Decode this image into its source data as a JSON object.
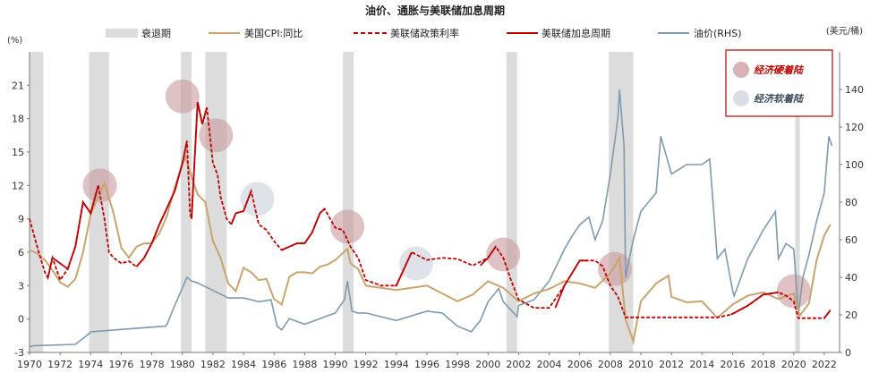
{
  "chart_data": {
    "type": "line",
    "title": "油价、通胀与美联储加息周期",
    "left_unit": "(%)",
    "right_unit": "(美元/桶)",
    "xlim": [
      1970,
      2023
    ],
    "ylim_left": [
      -3,
      24
    ],
    "ylim_right": [
      0,
      160
    ],
    "x_ticks": [
      "1970",
      "1972",
      "1974",
      "1976",
      "1978",
      "1980",
      "1982",
      "1984",
      "1986",
      "1988",
      "1990",
      "1992",
      "1994",
      "1996",
      "1998",
      "2000",
      "2002",
      "2004",
      "2006",
      "2008",
      "2010",
      "2012",
      "2014",
      "2016",
      "2018",
      "2020",
      "2022"
    ],
    "y_left_ticks": [
      "-3",
      "0",
      "3",
      "6",
      "9",
      "12",
      "15",
      "18",
      "21"
    ],
    "y_right_ticks": [
      "0",
      "20",
      "40",
      "60",
      "80",
      "100",
      "120",
      "140"
    ],
    "legend": {
      "recession": "衰退期",
      "cpi": "美国CPI:同比",
      "fed_funds": "美联储政策利率",
      "hike_cycle": "美联储加息周期",
      "oil": "油价(RHS)"
    },
    "annotations_box": {
      "hard_landing": "经济硬着陆",
      "soft_landing": "经济软着陆"
    },
    "colors": {
      "recession": "#dcdcdc",
      "cpi": "#c8a46e",
      "fed_funds": "#c00000",
      "hike_cycle": "#c00000",
      "oil": "#7f99b0",
      "hard_circle": "#c99a9c",
      "soft_circle": "#d9dde4"
    },
    "recessions": [
      [
        1970.0,
        1970.9
      ],
      [
        1973.9,
        1975.2
      ],
      [
        1979.9,
        1980.6
      ],
      [
        1981.5,
        1982.9
      ],
      [
        1990.5,
        1991.2
      ],
      [
        2001.2,
        2001.9
      ],
      [
        2007.9,
        2009.5
      ],
      [
        2020.1,
        2020.4
      ]
    ],
    "cpi": {
      "x": [
        1970,
        1970.5,
        1971,
        1971.5,
        1972,
        1972.5,
        1973,
        1973.5,
        1974,
        1974.5,
        1974.9,
        1975.5,
        1976,
        1976.5,
        1977,
        1977.5,
        1978,
        1978.5,
        1979,
        1979.5,
        1980,
        1980.2,
        1980.6,
        1981,
        1981.5,
        1982,
        1982.5,
        1983,
        1983.5,
        1984,
        1984.5,
        1985,
        1985.5,
        1986,
        1986.5,
        1987,
        1987.5,
        1988,
        1988.5,
        1989,
        1989.5,
        1990,
        1990.8,
        1991,
        1991.5,
        1992,
        1992.5,
        1993,
        1994,
        1995,
        1996,
        1997,
        1998,
        1999,
        2000,
        2001,
        2002,
        2003,
        2004,
        2005,
        2006,
        2007,
        2008,
        2008.6,
        2009,
        2009.5,
        2010,
        2011,
        2011.8,
        2012,
        2013,
        2014,
        2015,
        2016,
        2017,
        2018,
        2019,
        2020,
        2020.4,
        2021,
        2021.5,
        2022,
        2022.4
      ],
      "y": [
        6.2,
        5.9,
        5.3,
        4.4,
        3.3,
        2.9,
        3.6,
        6.0,
        9.4,
        11.0,
        12.2,
        9.5,
        6.4,
        5.5,
        6.5,
        6.8,
        6.8,
        7.7,
        9.3,
        11.8,
        13.9,
        14.6,
        12.8,
        11.2,
        10.5,
        7.0,
        5.5,
        3.2,
        2.5,
        4.6,
        4.2,
        3.5,
        3.6,
        1.8,
        1.3,
        3.8,
        4.2,
        4.2,
        4.1,
        4.7,
        4.9,
        5.3,
        6.3,
        5.0,
        4.5,
        3.0,
        2.9,
        2.8,
        2.6,
        2.8,
        3.0,
        2.3,
        1.6,
        2.2,
        3.4,
        2.8,
        1.6,
        2.3,
        2.7,
        3.4,
        3.2,
        2.8,
        4.1,
        5.5,
        0.0,
        -2.0,
        1.6,
        3.2,
        3.9,
        2.0,
        1.5,
        1.6,
        0.1,
        1.3,
        2.1,
        2.4,
        1.8,
        2.3,
        0.3,
        1.4,
        5.3,
        7.5,
        8.5
      ]
    },
    "fed_funds": {
      "x": [
        1970,
        1970.5,
        1971,
        1971.2,
        1971.5,
        1972,
        1972.5,
        1973,
        1973.5,
        1974,
        1974.5,
        1974.9,
        1975.2,
        1975.5,
        1976,
        1976.5,
        1977,
        1977.5,
        1978,
        1978.5,
        1979,
        1979.5,
        1980,
        1980.3,
        1980.5,
        1980.6,
        1981,
        1981.3,
        1981.6,
        1982,
        1982.3,
        1982.5,
        1982.9,
        1983.2,
        1983.5,
        1984,
        1984.5,
        1985,
        1985.5,
        1986,
        1986.5,
        1987,
        1987.5,
        1988,
        1988.5,
        1989,
        1989.3,
        1990,
        1990.5,
        1991,
        1991.5,
        1992,
        1993,
        1994,
        1994.5,
        1995,
        1996,
        1997,
        1998,
        1999,
        2000,
        2000.5,
        2001,
        2001.5,
        2002,
        2003,
        2004,
        2005,
        2006,
        2007,
        2007.5,
        2008,
        2008.5,
        2009,
        2010,
        2015,
        2015.9,
        2017,
        2018,
        2019,
        2019.5,
        2020,
        2020.3,
        2021,
        2022,
        2022.4
      ],
      "y": [
        9.0,
        6.5,
        4.2,
        3.7,
        5.5,
        3.5,
        4.5,
        6.5,
        10.5,
        9.5,
        12.0,
        9.0,
        6.0,
        5.5,
        5.0,
        5.2,
        4.7,
        5.5,
        6.8,
        8.5,
        10.0,
        11.5,
        14.0,
        16.0,
        9.5,
        9.0,
        19.5,
        17.5,
        19.0,
        14.0,
        13.0,
        11.0,
        9.0,
        8.5,
        9.5,
        9.7,
        11.5,
        8.5,
        8.0,
        7.0,
        6.2,
        6.5,
        6.8,
        6.8,
        7.8,
        9.5,
        9.9,
        8.2,
        8.0,
        6.5,
        5.5,
        3.5,
        3.0,
        3.0,
        4.5,
        6.0,
        5.3,
        5.5,
        5.4,
        4.8,
        5.5,
        6.5,
        5.5,
        3.5,
        1.75,
        1.0,
        1.0,
        3.0,
        5.25,
        5.25,
        4.75,
        3.0,
        2.0,
        0.15,
        0.15,
        0.15,
        0.4,
        1.2,
        2.2,
        2.4,
        2.1,
        1.6,
        0.08,
        0.08,
        0.08,
        0.8
      ]
    },
    "hike_cycle": {
      "x": [
        1971.2,
        1971.5,
        1972.5,
        1973,
        1973.5,
        1974,
        1974.5,
        null,
        1977,
        1977.5,
        1978,
        1978.5,
        1979,
        1979.5,
        1980,
        1980.3,
        null,
        1980.6,
        1981,
        1981.3,
        1981.6,
        null,
        1983.2,
        1983.5,
        1984,
        1984.5,
        null,
        1986.5,
        1987,
        1987.5,
        1988,
        1988.5,
        1989,
        1989.3,
        null,
        1993.9,
        1994,
        1994.5,
        1995,
        null,
        1999.5,
        2000,
        2000.5,
        null,
        2004.4,
        2005,
        2006,
        2006.5,
        null,
        2015.9,
        2017,
        2018,
        2019,
        null,
        2022,
        2022.4
      ],
      "y": [
        3.7,
        5.5,
        4.5,
        6.5,
        10.5,
        9.5,
        12.0,
        null,
        4.7,
        5.5,
        6.8,
        8.5,
        10.0,
        11.5,
        14.0,
        16.0,
        null,
        9.0,
        19.5,
        17.5,
        19.0,
        null,
        8.5,
        9.5,
        9.7,
        11.5,
        null,
        6.2,
        6.5,
        6.8,
        6.8,
        7.8,
        9.5,
        9.9,
        null,
        3.0,
        3.0,
        4.5,
        6.0,
        null,
        4.8,
        5.5,
        6.5,
        null,
        1.0,
        3.0,
        5.25,
        5.25,
        null,
        0.4,
        1.2,
        2.2,
        2.4,
        null,
        0.08,
        0.8
      ]
    },
    "oil": {
      "x": [
        1970,
        1970.3,
        1973,
        1973.9,
        1974,
        1978.9,
        1979,
        1979.5,
        1980.3,
        1980.6,
        1981,
        1982,
        1983,
        1984,
        1985,
        1985.8,
        1986.2,
        1986.5,
        1987,
        1988,
        1989,
        1990,
        1990.6,
        1990.8,
        1991.1,
        1991.5,
        1992,
        1994,
        1996,
        1997,
        1998,
        1998.9,
        1999.5,
        2000,
        2000.7,
        2001,
        2001.9,
        2002,
        2003,
        2004,
        2005,
        2005.5,
        2006,
        2006.6,
        2007,
        2007.5,
        2008,
        2008.5,
        2008.6,
        2008.9,
        2009,
        2009.5,
        2010,
        2011,
        2011.3,
        2012,
        2013,
        2014,
        2014.5,
        2015,
        2015.5,
        2016,
        2016.1,
        2017,
        2018,
        2018.8,
        2019,
        2019.5,
        2020,
        2020.3,
        2020.6,
        2021,
        2021.5,
        2022,
        2022.3,
        2022.5
      ],
      "y": [
        3,
        3.6,
        4.3,
        10,
        11,
        14,
        15,
        25,
        40,
        38,
        37,
        33,
        29,
        29,
        27,
        28,
        14,
        12,
        18,
        15,
        18,
        21,
        28,
        38,
        22,
        21,
        21,
        17,
        22,
        21,
        14,
        11,
        17,
        27,
        34,
        27,
        19,
        25,
        28,
        38,
        55,
        62,
        68,
        72,
        60,
        70,
        95,
        125,
        140,
        110,
        40,
        60,
        75,
        85,
        115,
        95,
        100,
        100,
        103,
        50,
        55,
        33,
        30,
        50,
        65,
        75,
        50,
        58,
        55,
        20,
        40,
        52,
        70,
        85,
        115,
        110
      ]
    },
    "hard_landing_markers": [
      [
        1974.6,
        12.0
      ],
      [
        1980.0,
        20.0
      ],
      [
        1982.2,
        16.5
      ],
      [
        1990.8,
        8.3
      ],
      [
        2001.0,
        5.8
      ],
      [
        2008.3,
        4.5
      ],
      [
        2020.0,
        2.5
      ]
    ],
    "soft_landing_markers": [
      [
        1984.9,
        10.8
      ],
      [
        1995.3,
        5.0
      ]
    ]
  }
}
